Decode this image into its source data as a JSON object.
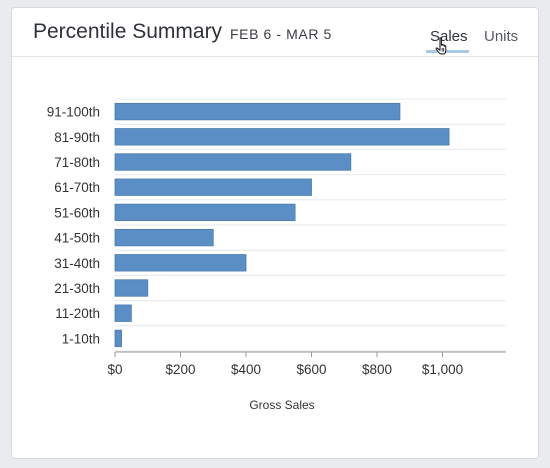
{
  "header": {
    "title": "Percentile Summary",
    "date_range": "FEB 6 - MAR 5",
    "tabs": [
      {
        "label": "Sales",
        "active": true
      },
      {
        "label": "Units",
        "active": false
      }
    ]
  },
  "colors": {
    "bar": "#5b8ec4",
    "bar_border": "#4a7cb0",
    "tab_underline": "#a9c8e6",
    "gridline": "#e6e8eb",
    "axis": "#999999"
  },
  "chart_data": {
    "type": "bar",
    "orientation": "horizontal",
    "categories": [
      "91-100th",
      "81-90th",
      "71-80th",
      "61-70th",
      "51-60th",
      "41-50th",
      "31-40th",
      "21-30th",
      "11-20th",
      "1-10th"
    ],
    "values": [
      870,
      1020,
      720,
      600,
      550,
      300,
      400,
      100,
      50,
      20
    ],
    "xlabel": "Gross Sales",
    "xlim": [
      0,
      1200
    ],
    "xticks": [
      0,
      200,
      400,
      600,
      800,
      1000
    ],
    "xtick_labels": [
      "$0",
      "$200",
      "$400",
      "$600",
      "$800",
      "$1,000"
    ],
    "grid": "horizontal row lines"
  }
}
